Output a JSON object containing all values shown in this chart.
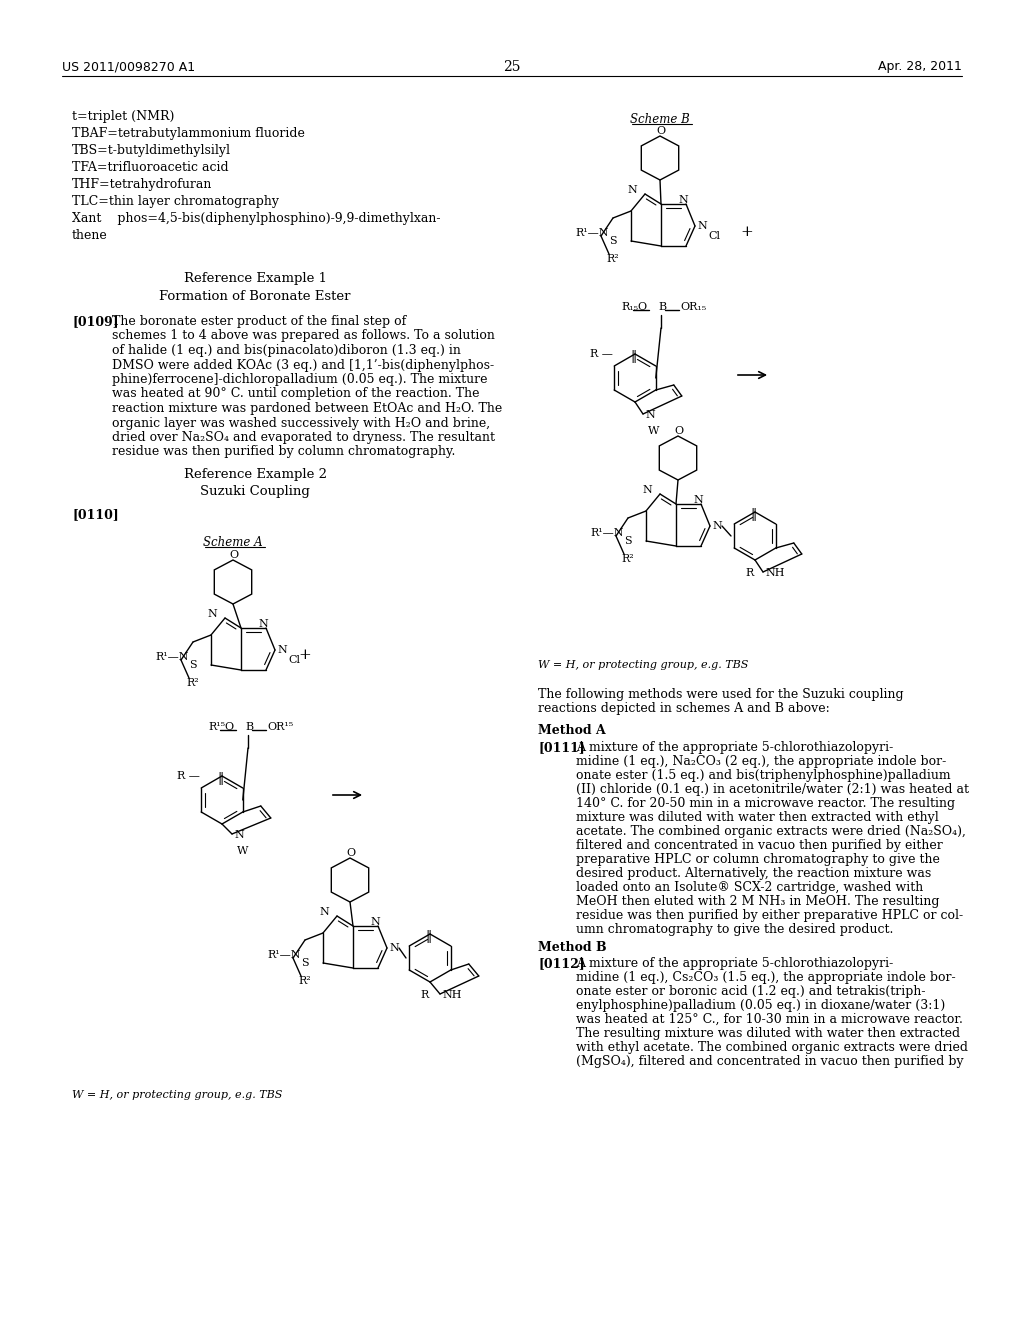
{
  "page_header_left": "US 2011/0098270 A1",
  "page_header_right": "Apr. 28, 2011",
  "page_number": "25",
  "background_color": "#ffffff",
  "left_abbrev": [
    "t=triplet (NMR)",
    "TBAF=tetrabutylammonium fluoride",
    "TBS=t-butyldimethylsilyl",
    "TFA=trifluoroacetic acid",
    "THF=tetrahydrofuran",
    "TLC=thin layer chromatography",
    "Xant    phos=4,5-bis(diphenylphosphino)-9,9-dimethylxan-",
    "thene"
  ],
  "ref_ex1_title": "Reference Example 1",
  "ref_ex1_sub": "Formation of Boronate Ester",
  "para_0109_label": "[0109]",
  "para_0109": [
    "The boronate ester product of the final step of",
    "schemes 1 to 4 above was prepared as follows. To a solution",
    "of halide (1 eq.) and bis(pinacolato)diboron (1.3 eq.) in",
    "DMSO were added KOAc (3 eq.) and [1,1’-bis(diphenylphos-",
    "phine)ferrocene]-dichloropalladium (0.05 eq.). The mixture",
    "was heated at 90° C. until completion of the reaction. The",
    "reaction mixture was pardoned between EtOAc and H₂O. The",
    "organic layer was washed successively with H₂O and brine,",
    "dried over Na₂SO₄ and evaporated to dryness. The resultant",
    "residue was then purified by column chromatography."
  ],
  "ref_ex2_title": "Reference Example 2",
  "ref_ex2_sub": "Suzuki Coupling",
  "para_0110_label": "[0110]",
  "scheme_a_label": "Scheme A",
  "scheme_b_label": "Scheme B",
  "w_note": "W = H, or protecting group, e.g. TBS",
  "method_intro": [
    "The following methods were used for the Suzuki coupling",
    "reactions depicted in schemes A and B above:"
  ],
  "method_a_title": "Method A",
  "para_0111_label": "[0111]",
  "para_0111": [
    "A mixture of the appropriate 5-chlorothiazolopyri-",
    "midine (1 eq.), Na₂CO₃ (2 eq.), the appropriate indole bor-",
    "onate ester (1.5 eq.) and bis(triphenylphosphine)palladium",
    "(II) chloride (0.1 eq.) in acetonitrile/water (2:1) was heated at",
    "140° C. for 20-50 min in a microwave reactor. The resulting",
    "mixture was diluted with water then extracted with ethyl",
    "acetate. The combined organic extracts were dried (Na₂SO₄),",
    "filtered and concentrated in vacuo then purified by either",
    "preparative HPLC or column chromatography to give the",
    "desired product. Alternatively, the reaction mixture was",
    "loaded onto an Isolute® SCX-2 cartridge, washed with",
    "MeOH then eluted with 2 M NH₃ in MeOH. The resulting",
    "residue was then purified by either preparative HPLC or col-",
    "umn chromatography to give the desired product."
  ],
  "method_b_title": "Method B",
  "para_0112_label": "[0112]",
  "para_0112": [
    "A mixture of the appropriate 5-chlorothiazolopyri-",
    "midine (1 eq.), Cs₂CO₃ (1.5 eq.), the appropriate indole bor-",
    "onate ester or boronic acid (1.2 eq.) and tetrakis(triph-",
    "enylphosphine)palladium (0.05 eq.) in dioxane/water (3:1)",
    "was heated at 125° C., for 10-30 min in a microwave reactor.",
    "The resulting mixture was diluted with water then extracted",
    "with ethyl acetate. The combined organic extracts were dried",
    "(MgSO₄), filtered and concentrated in vacuo then purified by"
  ]
}
